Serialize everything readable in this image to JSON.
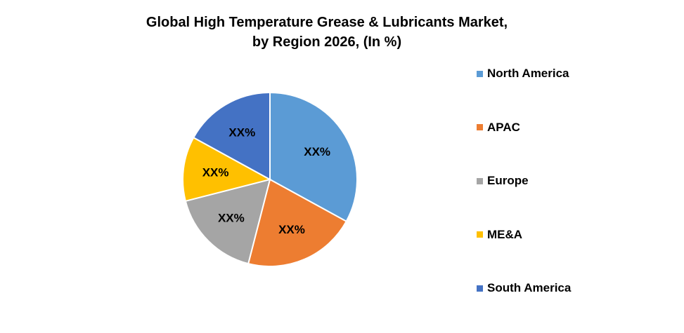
{
  "chart_data": {
    "type": "pie",
    "title_lines": [
      "Global High Temperature Grease & Lubricants Market,",
      "by Region 2026, (In %)"
    ],
    "slices": [
      {
        "name": "North America",
        "value": 33,
        "label": "XX%",
        "color": "#5B9BD5"
      },
      {
        "name": "APAC",
        "value": 21,
        "label": "XX%",
        "color": "#ED7D31"
      },
      {
        "name": "Europe",
        "value": 17,
        "label": "XX%",
        "color": "#A5A5A5"
      },
      {
        "name": "ME&A",
        "value": 12,
        "label": "XX%",
        "color": "#FFC000"
      },
      {
        "name": "South America",
        "value": 17,
        "label": "XX%",
        "color": "#4472C4"
      }
    ],
    "legend_position": "right"
  }
}
